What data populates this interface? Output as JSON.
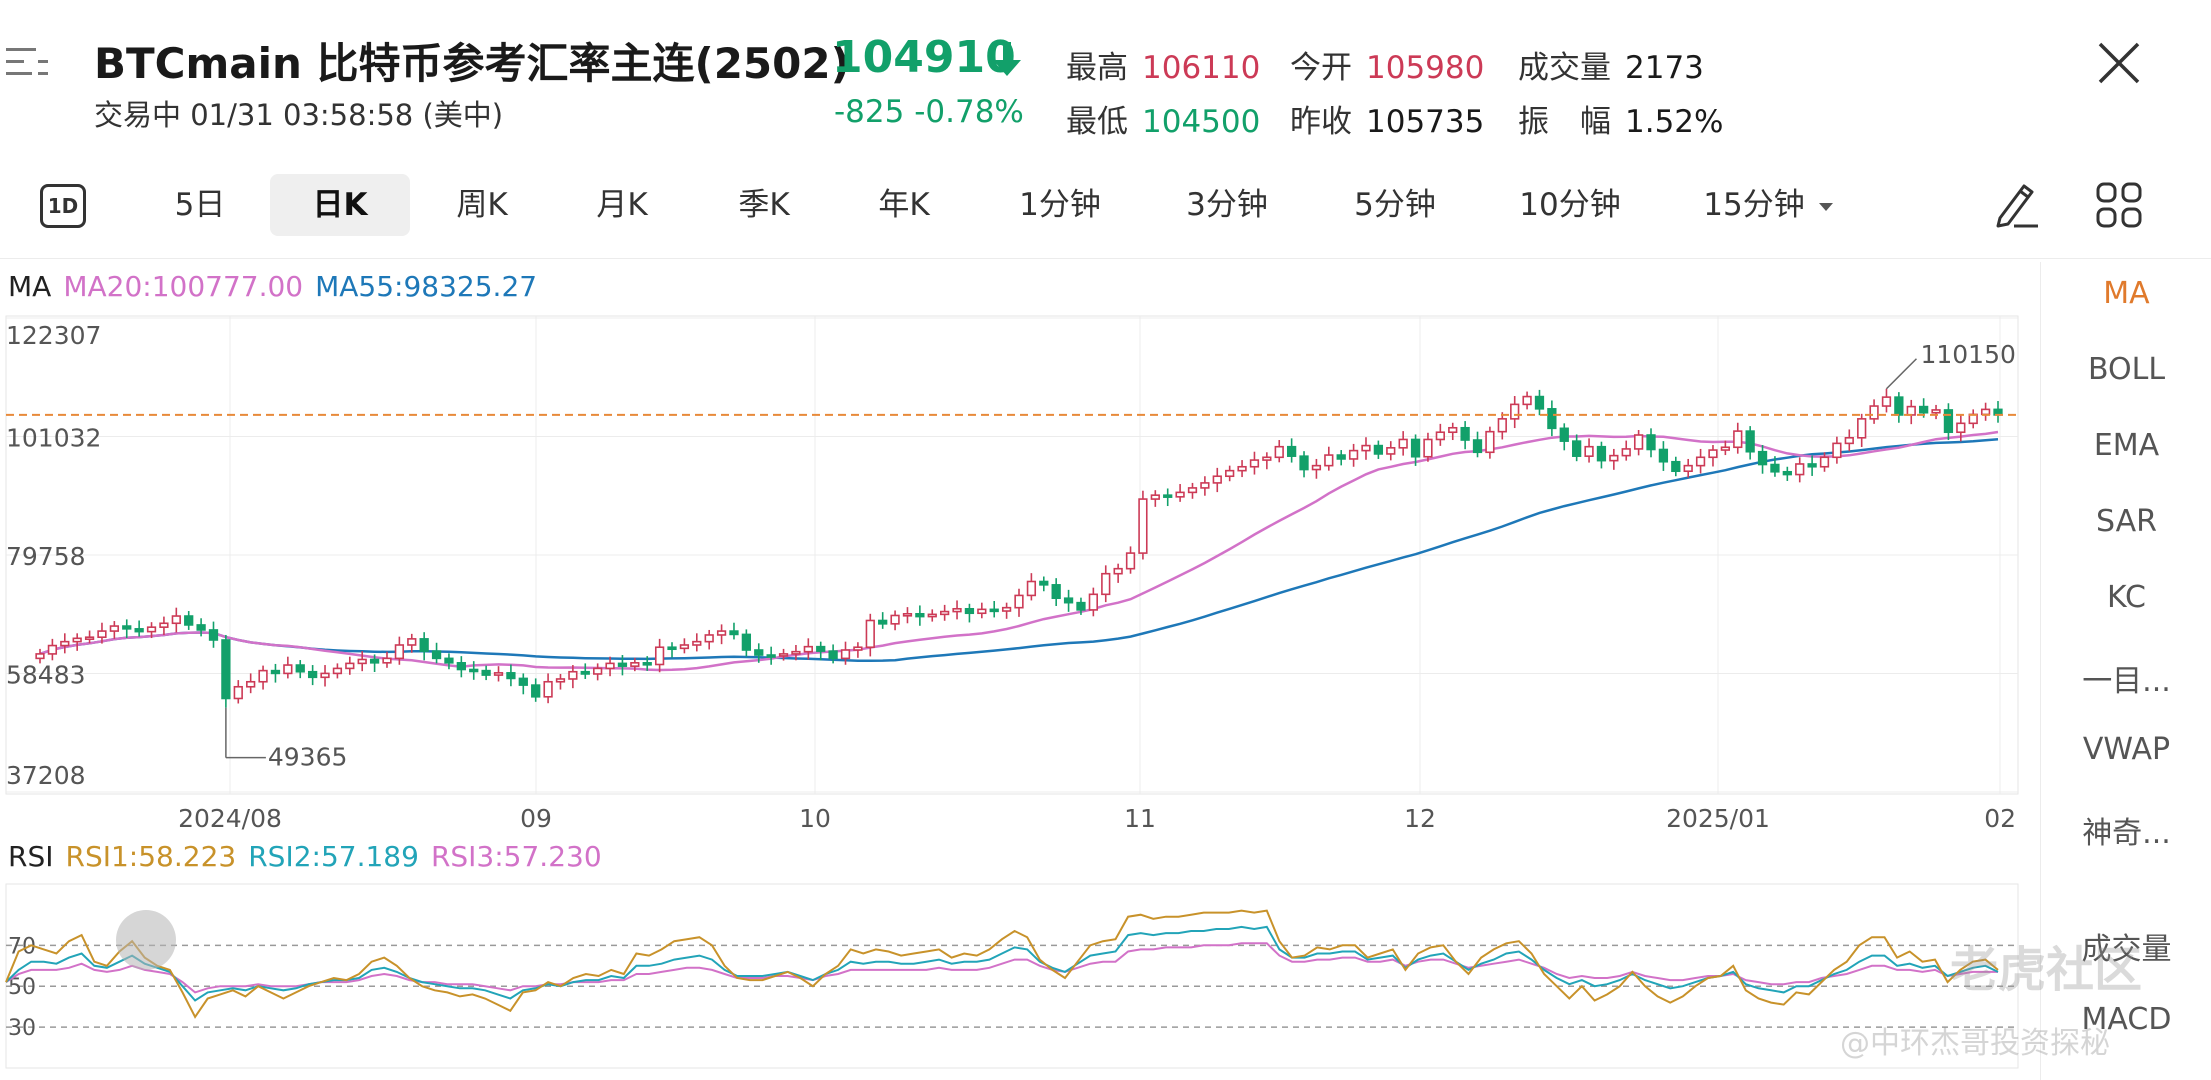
{
  "header": {
    "title": "BTCmain  比特币参考汇率主连(2502)",
    "status_time": "交易中 01/31 03:58:58 (美中)",
    "price": "104910",
    "change": "-825 -0.78%",
    "stats": {
      "high_label": "最高",
      "high_value": "106110",
      "open_label": "今开",
      "open_value": "105980",
      "volume_label": "成交量",
      "volume_value": "2173",
      "low_label": "最低",
      "low_value": "104500",
      "prev_close_label": "昨收",
      "prev_close_value": "105735",
      "amplitude_label": "振　幅",
      "amplitude_value": "1.52%"
    }
  },
  "tabs": {
    "one_day_icon": "1D",
    "items": [
      "5日",
      "日K",
      "周K",
      "月K",
      "季K",
      "年K",
      "1分钟",
      "3分钟",
      "5分钟",
      "10分钟",
      "15分钟"
    ],
    "active": "日K"
  },
  "icons": [
    "menu-icon",
    "down-arrow-icon",
    "close-icon",
    "pencil-icon",
    "grid-icon"
  ],
  "side_panel": {
    "items": [
      "MA",
      "BOLL",
      "EMA",
      "SAR",
      "KC",
      "一目...",
      "VWAP",
      "神奇...",
      "成交量",
      "MACD"
    ],
    "active": "MA"
  },
  "ma_legend": {
    "label": "MA",
    "ma20": "MA20:100777.00",
    "ma55": "MA55:98325.27"
  },
  "rsi_legend": {
    "label": "RSI",
    "rsi1": "RSI1:58.223",
    "rsi2": "RSI2:57.189",
    "rsi3": "RSI3:57.230"
  },
  "chart_data": {
    "type": "candlestick",
    "y_ticks": [
      "122307",
      "101032",
      "79758",
      "58483",
      "37208"
    ],
    "ylim": [
      37208,
      122307
    ],
    "x_ticks": [
      "2024/08",
      "09",
      "10",
      "11",
      "12",
      "2025/01",
      "02"
    ],
    "high_annotation": "110150",
    "low_annotation": "49365",
    "last_price_line": 104910,
    "colors": {
      "up": "#cc3a56",
      "down": "#12a06a",
      "ma20": "#d272c8",
      "ma55": "#1e78b8",
      "rsi1": "#c8922a",
      "rsi2": "#22a4b8",
      "rsi3": "#d272c8",
      "price_line": "#e88a3a"
    },
    "closes": [
      62000,
      63500,
      64200,
      64800,
      65000,
      66100,
      67000,
      66500,
      66000,
      66800,
      67500,
      68800,
      67200,
      66300,
      64500,
      54000,
      56100,
      57000,
      59000,
      58500,
      60000,
      58800,
      57800,
      58500,
      59400,
      60300,
      61000,
      60400,
      61200,
      63600,
      64700,
      62500,
      61200,
      60400,
      59200,
      59000,
      58200,
      58600,
      57600,
      56400,
      54300,
      57000,
      57500,
      58800,
      58400,
      59400,
      60300,
      59800,
      60400,
      60100,
      63200,
      63000,
      63600,
      64200,
      65400,
      66100,
      65500,
      62700,
      61800,
      61700,
      62000,
      62400,
      63300,
      62500,
      61200,
      62700,
      63200,
      68000,
      67400,
      68900,
      69200,
      68700,
      69100,
      69600,
      70100,
      69300,
      70000,
      69700,
      70300,
      72500,
      75000,
      74400,
      72000,
      71200,
      69900,
      72700,
      76400,
      77300,
      80100,
      89800,
      90500,
      90200,
      91000,
      91800,
      92700,
      93900,
      94900,
      95600,
      96800,
      97300,
      99200,
      97500,
      95100,
      95800,
      97700,
      97000,
      98500,
      99400,
      97900,
      99000,
      100500,
      97400,
      100500,
      101800,
      102600,
      100400,
      98200,
      101900,
      104200,
      106800,
      108200,
      106000,
      102500,
      100200,
      97500,
      99200,
      96700,
      97600,
      98800,
      101300,
      98700,
      96500,
      94800,
      95800,
      97300,
      98600,
      99100,
      102000,
      98300,
      96000,
      94700,
      94200,
      96100,
      95600,
      97300,
      99800,
      100800,
      104200,
      106500,
      108100,
      104900,
      106400,
      105300,
      105800,
      101800,
      103400,
      105000,
      105900,
      104910
    ],
    "rsi1": [
      52,
      67,
      70,
      68,
      66,
      72,
      75,
      62,
      60,
      67,
      72,
      64,
      60,
      58,
      47,
      35,
      44,
      46,
      48,
      45,
      50,
      47,
      44,
      47,
      50,
      52,
      54,
      53,
      56,
      62,
      64,
      60,
      54,
      50,
      48,
      47,
      45,
      46,
      44,
      41,
      38,
      47,
      48,
      52,
      50,
      54,
      56,
      55,
      58,
      56,
      66,
      65,
      68,
      72,
      73,
      74,
      70,
      60,
      54,
      53,
      53,
      55,
      57,
      54,
      50,
      56,
      60,
      68,
      66,
      68,
      67,
      65,
      66,
      67,
      68,
      64,
      66,
      65,
      68,
      73,
      77,
      74,
      63,
      58,
      54,
      62,
      70,
      72,
      73,
      84,
      85,
      83,
      84,
      84,
      85,
      86,
      86,
      86,
      87,
      86,
      87,
      72,
      64,
      65,
      69,
      68,
      70,
      70,
      64,
      66,
      68,
      58,
      66,
      69,
      70,
      62,
      56,
      64,
      68,
      71,
      72,
      66,
      56,
      50,
      44,
      50,
      43,
      46,
      50,
      57,
      50,
      45,
      42,
      45,
      50,
      54,
      55,
      60,
      48,
      44,
      42,
      41,
      47,
      46,
      52,
      58,
      62,
      70,
      74,
      74,
      64,
      67,
      62,
      63,
      52,
      58,
      62,
      63,
      58
    ],
    "rsi2": [
      52,
      58,
      62,
      62,
      61,
      64,
      66,
      60,
      59,
      62,
      65,
      61,
      59,
      57,
      50,
      43,
      47,
      48,
      49,
      48,
      50,
      49,
      48,
      49,
      51,
      52,
      53,
      53,
      54,
      58,
      59,
      57,
      54,
      52,
      51,
      50,
      49,
      49,
      48,
      46,
      44,
      48,
      49,
      51,
      50,
      52,
      53,
      53,
      55,
      54,
      60,
      60,
      61,
      63,
      64,
      65,
      63,
      58,
      55,
      55,
      55,
      56,
      57,
      55,
      53,
      56,
      58,
      62,
      61,
      62,
      62,
      61,
      61,
      62,
      63,
      61,
      62,
      62,
      63,
      66,
      69,
      68,
      62,
      59,
      57,
      61,
      65,
      66,
      67,
      75,
      76,
      75,
      76,
      76,
      77,
      77,
      78,
      78,
      79,
      78,
      79,
      68,
      64,
      64,
      66,
      66,
      67,
      67,
      63,
      64,
      65,
      59,
      63,
      65,
      66,
      62,
      58,
      61,
      63,
      66,
      67,
      63,
      58,
      54,
      51,
      53,
      50,
      51,
      53,
      56,
      53,
      51,
      49,
      50,
      52,
      54,
      55,
      57,
      51,
      49,
      48,
      47,
      50,
      50,
      53,
      56,
      58,
      62,
      65,
      65,
      60,
      61,
      59,
      60,
      55,
      57,
      59,
      60,
      57
    ],
    "rsi3": [
      52,
      56,
      58,
      58,
      58,
      59,
      61,
      58,
      57,
      58,
      60,
      58,
      57,
      56,
      52,
      47,
      49,
      50,
      50,
      50,
      51,
      50,
      50,
      50,
      51,
      52,
      52,
      52,
      53,
      55,
      56,
      55,
      53,
      52,
      52,
      51,
      51,
      51,
      50,
      49,
      48,
      50,
      50,
      51,
      51,
      52,
      52,
      52,
      53,
      53,
      56,
      56,
      57,
      58,
      59,
      59,
      58,
      56,
      54,
      54,
      54,
      55,
      55,
      54,
      53,
      55,
      56,
      58,
      58,
      58,
      58,
      58,
      58,
      58,
      59,
      58,
      58,
      58,
      59,
      61,
      63,
      63,
      60,
      58,
      57,
      59,
      61,
      62,
      62,
      67,
      68,
      68,
      69,
      69,
      69,
      70,
      70,
      70,
      71,
      71,
      71,
      65,
      62,
      62,
      63,
      63,
      64,
      64,
      62,
      62,
      63,
      60,
      62,
      63,
      63,
      61,
      59,
      60,
      61,
      62,
      63,
      61,
      59,
      56,
      54,
      55,
      54,
      54,
      55,
      57,
      55,
      54,
      53,
      53,
      54,
      55,
      55,
      56,
      53,
      52,
      51,
      51,
      52,
      52,
      54,
      55,
      56,
      58,
      60,
      60,
      58,
      58,
      57,
      58,
      55,
      56,
      57,
      57,
      57
    ]
  },
  "watermark": {
    "brand": "老虎社区",
    "author": "@中环杰哥投资探秘"
  }
}
